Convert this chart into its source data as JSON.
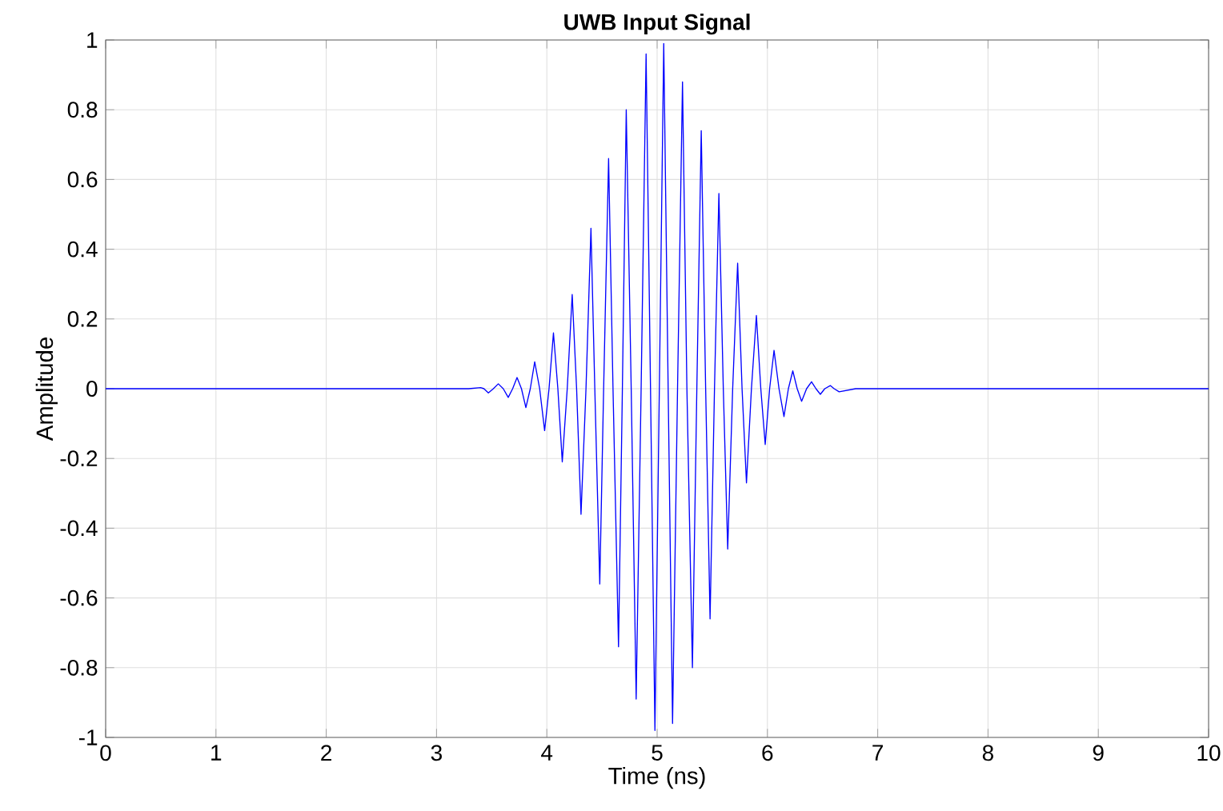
{
  "chart_data": {
    "type": "line",
    "title": "UWB Input Signal",
    "xlabel": "Time (ns)",
    "ylabel": "Amplitude",
    "x": [
      0,
      3.2,
      3.29,
      3.4,
      3.43,
      3.47,
      3.515,
      3.56,
      3.605,
      3.65,
      3.69,
      3.73,
      3.77,
      3.81,
      3.85,
      3.89,
      3.935,
      3.98,
      4.02,
      4.06,
      4.1,
      4.14,
      4.185,
      4.23,
      4.27,
      4.31,
      4.355,
      4.4,
      4.435,
      4.48,
      4.515,
      4.56,
      4.6,
      4.65,
      4.685,
      4.72,
      4.765,
      4.81,
      4.855,
      4.9,
      4.94,
      4.98,
      5.02,
      5.06,
      5.1,
      5.14,
      5.185,
      5.23,
      5.27,
      5.32,
      5.36,
      5.4,
      5.44,
      5.48,
      5.52,
      5.56,
      5.6,
      5.64,
      5.685,
      5.73,
      5.77,
      5.81,
      5.855,
      5.9,
      5.94,
      5.98,
      6.02,
      6.06,
      6.105,
      6.15,
      6.19,
      6.23,
      6.27,
      6.31,
      6.355,
      6.4,
      6.44,
      6.48,
      6.52,
      6.57,
      6.605,
      6.65,
      6.8,
      10
    ],
    "series": [
      {
        "color": "#0000ff",
        "values": [
          0,
          0,
          0,
          0.003,
          0,
          -0.012,
          0,
          0.014,
          0,
          -0.025,
          0,
          0.032,
          0,
          -0.054,
          0,
          0.077,
          0,
          -0.12,
          0,
          0.16,
          0,
          -0.21,
          0,
          0.27,
          0,
          -0.36,
          0,
          0.46,
          0,
          -0.56,
          0,
          0.66,
          0,
          -0.74,
          0,
          0.8,
          0,
          -0.89,
          0,
          0.96,
          0,
          -0.98,
          0,
          0.99,
          0,
          -0.96,
          0,
          0.88,
          0,
          -0.8,
          0,
          0.74,
          0,
          -0.66,
          0,
          0.56,
          0,
          -0.46,
          0,
          0.36,
          0,
          -0.27,
          0,
          0.21,
          0,
          -0.16,
          0,
          0.11,
          0,
          -0.08,
          0,
          0.051,
          0,
          -0.036,
          0,
          0.02,
          0,
          -0.016,
          0,
          0.009,
          0,
          -0.009,
          0,
          0
        ]
      }
    ],
    "xlim": [
      0,
      10
    ],
    "ylim": [
      -1,
      1
    ],
    "xticks": [
      0,
      1,
      2,
      3,
      4,
      5,
      6,
      7,
      8,
      9,
      10
    ],
    "yticks": [
      -1,
      -0.8,
      -0.6,
      -0.4,
      -0.2,
      0,
      0.2,
      0.4,
      0.6,
      0.8,
      1
    ],
    "grid": true,
    "marker": "none",
    "line_style": "solid"
  }
}
